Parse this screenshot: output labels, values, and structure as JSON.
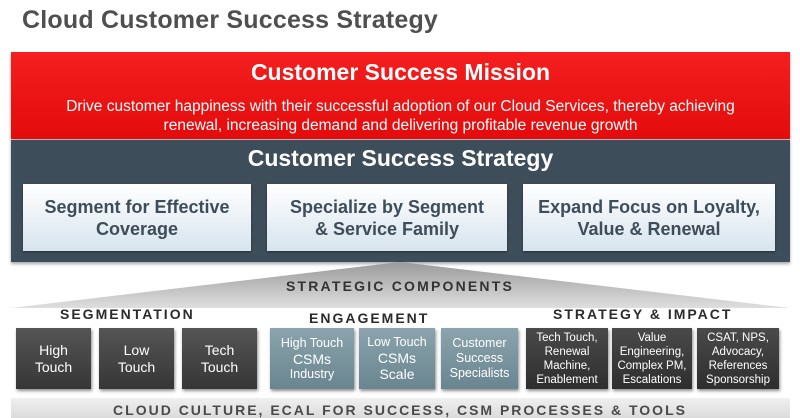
{
  "title": "Cloud Customer Success Strategy",
  "mission": {
    "heading": "Customer Success Mission",
    "text_line1": "Drive customer happiness with their successful adoption of our Cloud Services, thereby achieving",
    "text_line2": "renewal, increasing demand and delivering profitable revenue growth"
  },
  "strategy": {
    "heading": "Customer Success Strategy",
    "pillars": [
      {
        "line1": "Segment for Effective",
        "line2": "Coverage"
      },
      {
        "line1": "Specialize by Segment",
        "line2": "& Service Family"
      },
      {
        "line1": "Expand Focus on Loyalty,",
        "line2": "Value & Renewal"
      }
    ]
  },
  "components": {
    "title": "STRATEGIC COMPONENTS",
    "segmentation": {
      "label": "SEGMENTATION",
      "items": [
        {
          "line1": "High",
          "line2": "Touch"
        },
        {
          "line1": "Low",
          "line2": "Touch"
        },
        {
          "line1": "Tech",
          "line2": "Touch"
        }
      ]
    },
    "engagement": {
      "label": "ENGAGEMENT",
      "items": [
        {
          "line1": "High Touch",
          "line2": "CSMs",
          "line3": "Industry"
        },
        {
          "line1": "Low Touch",
          "line2": "CSMs",
          "line3": "Scale"
        },
        {
          "line1": "Customer",
          "line2": "Success",
          "line3": "Specialists"
        }
      ]
    },
    "strategy_impact": {
      "label": "STRATEGY & IMPACT",
      "items": [
        {
          "line1": "Tech Touch,",
          "line2": "Renewal",
          "line3": "Machine,",
          "line4": "Enablement"
        },
        {
          "line1": "Value",
          "line2": "Engineering,",
          "line3": "Complex PM,",
          "line4": "Escalations"
        },
        {
          "line1": "CSAT, NPS,",
          "line2": "Advocacy,",
          "line3": "References",
          "line4": "Sponsorship"
        }
      ]
    }
  },
  "foundation": "CLOUD CULTURE, ECAL FOR SUCCESS, CSM PROCESSES & TOOLS",
  "colors": {
    "mission_red": "#ec1414",
    "strategy_slate": "#3e4d5a",
    "engagement_teal": "#7a949e",
    "dark_box": "#404040"
  }
}
